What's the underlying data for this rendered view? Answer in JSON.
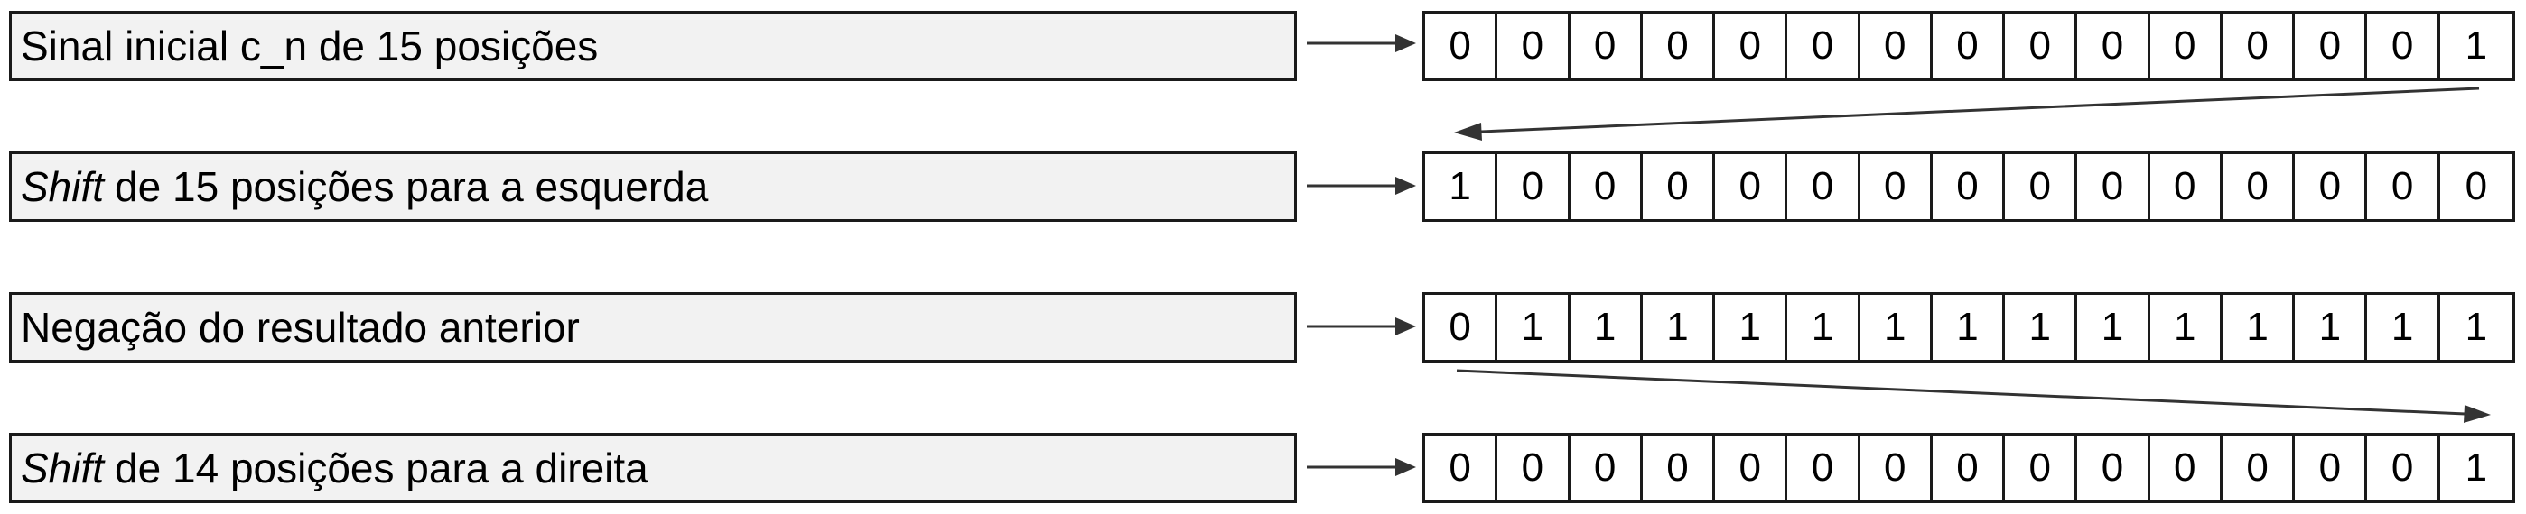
{
  "rows": [
    {
      "label_italic": "",
      "label_text": "Sinal inicial c_n de 15 posições",
      "bits": [
        "0",
        "0",
        "0",
        "0",
        "0",
        "0",
        "0",
        "0",
        "0",
        "0",
        "0",
        "0",
        "0",
        "0",
        "1"
      ]
    },
    {
      "label_italic": "Shift",
      "label_text": "de 15 posições para a esquerda",
      "bits": [
        "1",
        "0",
        "0",
        "0",
        "0",
        "0",
        "0",
        "0",
        "0",
        "0",
        "0",
        "0",
        "0",
        "0",
        "0"
      ]
    },
    {
      "label_italic": "",
      "label_text": "Negação do resultado anterior",
      "bits": [
        "0",
        "1",
        "1",
        "1",
        "1",
        "1",
        "1",
        "1",
        "1",
        "1",
        "1",
        "1",
        "1",
        "1",
        "1"
      ]
    },
    {
      "label_italic": "Shift",
      "label_text": "de 14 posições para a direita",
      "bits": [
        "0",
        "0",
        "0",
        "0",
        "0",
        "0",
        "0",
        "0",
        "0",
        "0",
        "0",
        "0",
        "0",
        "0",
        "1"
      ]
    }
  ]
}
